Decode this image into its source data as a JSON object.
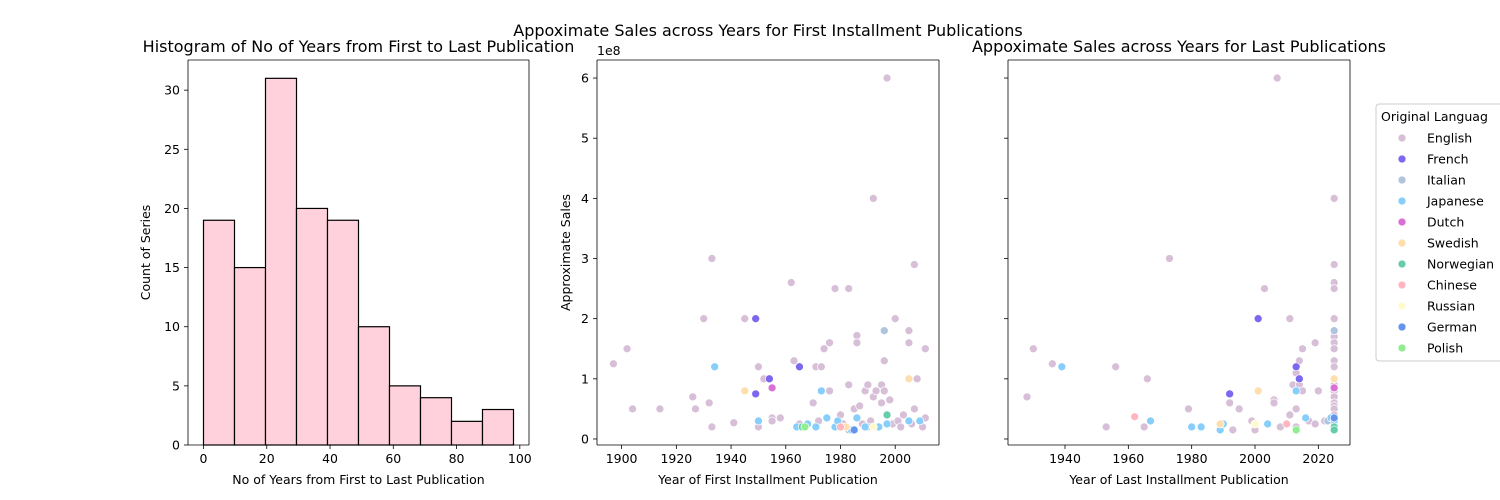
{
  "figure": {
    "suptitle": "Appoximate Sales across Years for First Installment Publications"
  },
  "chart_data": [
    {
      "type": "bar",
      "title": "Histogram of No of Years from First to Last Publication",
      "xlabel": "No of Years from First to Last Publication",
      "ylabel": "Count of Series",
      "bin_edges": [
        0,
        9.8,
        19.6,
        29.4,
        39.2,
        49.0,
        58.8,
        68.6,
        78.4,
        88.2,
        98
      ],
      "values": [
        19,
        15,
        31,
        20,
        19,
        10,
        5,
        4,
        2,
        3
      ],
      "xlim": [
        -4.9,
        102.9
      ],
      "ylim": [
        0,
        32.55
      ],
      "xticks": [
        0,
        20,
        40,
        60,
        80,
        100
      ],
      "yticks": [
        0,
        5,
        10,
        15,
        20,
        25,
        30
      ],
      "bar_color": "#ffd1dc",
      "edge_color": "#000000"
    },
    {
      "type": "scatter",
      "title": "",
      "xlabel": "Year of First Installment Publication",
      "ylabel": "Approximate Sales",
      "y_scale_label": "1e8",
      "xlim": [
        1891,
        2016
      ],
      "ylim": [
        -0.1,
        6.3
      ],
      "xticks": [
        1900,
        1920,
        1940,
        1960,
        1980,
        2000
      ],
      "yticks": [
        0,
        1,
        2,
        3,
        4,
        5,
        6
      ],
      "points": [
        [
          "English",
          1897,
          1.25
        ],
        [
          "English",
          1902,
          1.5
        ],
        [
          "English",
          1904,
          0.5
        ],
        [
          "English",
          1914,
          0.5
        ],
        [
          "English",
          1926,
          0.7
        ],
        [
          "English",
          1927,
          0.5
        ],
        [
          "English",
          1930,
          2.0
        ],
        [
          "English",
          1932,
          0.6
        ],
        [
          "English",
          1933,
          3.0
        ],
        [
          "English",
          1933,
          0.2
        ],
        [
          "English",
          1941,
          0.27
        ],
        [
          "English",
          1945,
          2.0
        ],
        [
          "English",
          1950,
          1.2
        ],
        [
          "English",
          1950,
          0.2
        ],
        [
          "English",
          1952,
          1.0
        ],
        [
          "English",
          1955,
          0.35
        ],
        [
          "English",
          1955,
          0.3
        ],
        [
          "English",
          1958,
          0.35
        ],
        [
          "English",
          1962,
          2.6
        ],
        [
          "English",
          1963,
          1.3
        ],
        [
          "English",
          1965,
          0.25
        ],
        [
          "English",
          1968,
          0.25
        ],
        [
          "English",
          1970,
          0.6
        ],
        [
          "English",
          1971,
          1.2
        ],
        [
          "English",
          1972,
          0.3
        ],
        [
          "English",
          1973,
          1.2
        ],
        [
          "English",
          1974,
          1.5
        ],
        [
          "English",
          1976,
          1.6
        ],
        [
          "English",
          1976,
          0.8
        ],
        [
          "English",
          1978,
          2.5
        ],
        [
          "English",
          1980,
          0.4
        ],
        [
          "English",
          1981,
          0.25
        ],
        [
          "English",
          1982,
          0.2
        ],
        [
          "English",
          1983,
          2.5
        ],
        [
          "English",
          1983,
          0.9
        ],
        [
          "English",
          1985,
          0.5
        ],
        [
          "English",
          1986,
          1.72
        ],
        [
          "English",
          1986,
          1.6
        ],
        [
          "English",
          1987,
          0.55
        ],
        [
          "English",
          1988,
          0.25
        ],
        [
          "English",
          1989,
          0.8
        ],
        [
          "English",
          1990,
          0.9
        ],
        [
          "English",
          1991,
          0.3
        ],
        [
          "English",
          1992,
          4.0
        ],
        [
          "English",
          1992,
          0.7
        ],
        [
          "English",
          1993,
          0.8
        ],
        [
          "English",
          1993,
          0.2
        ],
        [
          "English",
          1995,
          0.9
        ],
        [
          "English",
          1995,
          0.6
        ],
        [
          "English",
          1996,
          1.3
        ],
        [
          "English",
          1996,
          0.8
        ],
        [
          "English",
          1997,
          6.0
        ],
        [
          "English",
          1997,
          0.4
        ],
        [
          "English",
          1998,
          0.65
        ],
        [
          "English",
          1999,
          0.25
        ],
        [
          "English",
          2000,
          2.0
        ],
        [
          "English",
          2001,
          0.3
        ],
        [
          "English",
          2002,
          0.2
        ],
        [
          "English",
          2003,
          0.4
        ],
        [
          "English",
          2005,
          1.8
        ],
        [
          "English",
          2005,
          1.6
        ],
        [
          "English",
          2006,
          0.25
        ],
        [
          "English",
          2007,
          2.9
        ],
        [
          "English",
          2007,
          0.5
        ],
        [
          "English",
          2008,
          1.0
        ],
        [
          "English",
          2009,
          0.3
        ],
        [
          "English",
          2010,
          0.2
        ],
        [
          "English",
          2011,
          1.5
        ],
        [
          "English",
          2011,
          0.35
        ],
        [
          "French",
          1949,
          2.0
        ],
        [
          "French",
          1949,
          0.75
        ],
        [
          "French",
          1954,
          1.0
        ],
        [
          "French",
          1965,
          1.2
        ],
        [
          "Italian",
          1996,
          1.8
        ],
        [
          "Italian",
          1983,
          0.15
        ],
        [
          "Italian",
          1990,
          0.2
        ],
        [
          "Japanese",
          1934,
          1.2
        ],
        [
          "Japanese",
          1950,
          0.3
        ],
        [
          "Japanese",
          1964,
          0.2
        ],
        [
          "Japanese",
          1968,
          0.25
        ],
        [
          "Japanese",
          1971,
          0.2
        ],
        [
          "Japanese",
          1973,
          0.8
        ],
        [
          "Japanese",
          1975,
          0.35
        ],
        [
          "Japanese",
          1978,
          0.2
        ],
        [
          "Japanese",
          1979,
          0.3
        ],
        [
          "Japanese",
          1981,
          0.2
        ],
        [
          "Japanese",
          1984,
          0.15
        ],
        [
          "Japanese",
          1986,
          0.35
        ],
        [
          "Japanese",
          1989,
          0.2
        ],
        [
          "Japanese",
          1994,
          0.2
        ],
        [
          "Japanese",
          1997,
          0.25
        ],
        [
          "Japanese",
          2005,
          0.3
        ],
        [
          "Japanese",
          2009,
          0.3
        ],
        [
          "Dutch",
          1955,
          0.85
        ],
        [
          "Swedish",
          1945,
          0.8
        ],
        [
          "Swedish",
          2005,
          1.0
        ],
        [
          "Swedish",
          1982,
          0.2
        ],
        [
          "Norwegian",
          1966,
          0.2
        ],
        [
          "Norwegian",
          1997,
          0.4
        ],
        [
          "Chinese",
          1980,
          0.2
        ],
        [
          "Russian",
          1992,
          0.2
        ],
        [
          "German",
          1985,
          0.15
        ],
        [
          "Polish",
          1967,
          0.2
        ]
      ]
    },
    {
      "type": "scatter",
      "title": "Appoximate Sales across Years for Last Publications",
      "xlabel": "Year of Last Installment Publication",
      "ylabel": "",
      "xlim": [
        1922,
        2030
      ],
      "ylim": [
        -0.1,
        6.3
      ],
      "xticks": [
        1940,
        1960,
        1980,
        2000,
        2020
      ],
      "yticks": [
        0,
        1,
        2,
        3,
        4,
        5,
        6
      ],
      "points": [
        [
          "English",
          1928,
          0.7
        ],
        [
          "English",
          1930,
          1.5
        ],
        [
          "English",
          1936,
          1.25
        ],
        [
          "English",
          1953,
          0.2
        ],
        [
          "English",
          1956,
          1.2
        ],
        [
          "English",
          1965,
          0.2
        ],
        [
          "English",
          1966,
          1.0
        ],
        [
          "English",
          1973,
          3.0
        ],
        [
          "English",
          1979,
          0.5
        ],
        [
          "English",
          1992,
          0.6
        ],
        [
          "English",
          1993,
          0.15
        ],
        [
          "English",
          1995,
          0.5
        ],
        [
          "English",
          1999,
          0.3
        ],
        [
          "English",
          2000,
          0.15
        ],
        [
          "English",
          2003,
          2.5
        ],
        [
          "English",
          2006,
          0.65
        ],
        [
          "English",
          2006,
          0.6
        ],
        [
          "English",
          2007,
          6.0
        ],
        [
          "English",
          2008,
          0.2
        ],
        [
          "English",
          2011,
          2.0
        ],
        [
          "English",
          2011,
          0.4
        ],
        [
          "English",
          2012,
          0.9
        ],
        [
          "English",
          2013,
          1.1
        ],
        [
          "English",
          2013,
          0.5
        ],
        [
          "English",
          2013,
          0.2
        ],
        [
          "English",
          2014,
          1.3
        ],
        [
          "English",
          2014,
          0.9
        ],
        [
          "English",
          2015,
          1.5
        ],
        [
          "English",
          2015,
          0.8
        ],
        [
          "English",
          2017,
          0.3
        ],
        [
          "English",
          2019,
          1.6
        ],
        [
          "English",
          2019,
          0.25
        ],
        [
          "English",
          2020,
          0.8
        ],
        [
          "English",
          2022,
          0.3
        ],
        [
          "English",
          2025,
          4.0
        ],
        [
          "English",
          2025,
          2.9
        ],
        [
          "English",
          2025,
          2.6
        ],
        [
          "English",
          2025,
          2.5
        ],
        [
          "English",
          2025,
          2.0
        ],
        [
          "English",
          2025,
          1.8
        ],
        [
          "English",
          2025,
          1.7
        ],
        [
          "English",
          2025,
          1.6
        ],
        [
          "English",
          2025,
          1.5
        ],
        [
          "English",
          2025,
          1.3
        ],
        [
          "English",
          2025,
          1.2
        ],
        [
          "English",
          2025,
          1.0
        ],
        [
          "English",
          2025,
          0.9
        ],
        [
          "English",
          2025,
          0.85
        ],
        [
          "English",
          2025,
          0.8
        ],
        [
          "English",
          2025,
          0.7
        ],
        [
          "English",
          2025,
          0.6
        ],
        [
          "English",
          2025,
          0.55
        ],
        [
          "English",
          2025,
          0.5
        ],
        [
          "English",
          2025,
          0.4
        ],
        [
          "English",
          2025,
          0.3
        ],
        [
          "English",
          2025,
          0.25
        ],
        [
          "French",
          2001,
          2.0
        ],
        [
          "French",
          1992,
          0.75
        ],
        [
          "French",
          2013,
          1.2
        ],
        [
          "French",
          2014,
          1.0
        ],
        [
          "Italian",
          2025,
          1.8
        ],
        [
          "Italian",
          2023,
          0.3
        ],
        [
          "Japanese",
          1939,
          1.2
        ],
        [
          "Japanese",
          1967,
          0.3
        ],
        [
          "Japanese",
          1980,
          0.2
        ],
        [
          "Japanese",
          1983,
          0.2
        ],
        [
          "Japanese",
          1989,
          0.15
        ],
        [
          "Japanese",
          1990,
          0.25
        ],
        [
          "Japanese",
          2004,
          0.25
        ],
        [
          "Japanese",
          2013,
          0.8
        ],
        [
          "Japanese",
          2016,
          0.35
        ],
        [
          "Japanese",
          2024,
          0.35
        ],
        [
          "Japanese",
          2025,
          0.3
        ],
        [
          "Japanese",
          2025,
          0.2
        ],
        [
          "Dutch",
          2025,
          0.85
        ],
        [
          "Swedish",
          2001,
          0.8
        ],
        [
          "Swedish",
          2025,
          1.0
        ],
        [
          "Swedish",
          1989,
          0.25
        ],
        [
          "Norwegian",
          2025,
          0.2
        ],
        [
          "Norwegian",
          2025,
          0.15
        ],
        [
          "Chinese",
          1962,
          0.37
        ],
        [
          "Chinese",
          2010,
          0.25
        ],
        [
          "Russian",
          2000,
          0.25
        ],
        [
          "German",
          2025,
          0.35
        ],
        [
          "Polish",
          2013,
          0.15
        ]
      ]
    }
  ],
  "legend": {
    "title": "Original Languag",
    "placement": "right",
    "entries": [
      {
        "name": "English",
        "color": "#d8bfd8"
      },
      {
        "name": "French",
        "color": "#7b68ee"
      },
      {
        "name": "Italian",
        "color": "#b0c4de"
      },
      {
        "name": "Japanese",
        "color": "#87cefa"
      },
      {
        "name": "Dutch",
        "color": "#da70d6"
      },
      {
        "name": "Swedish",
        "color": "#ffdead"
      },
      {
        "name": "Norwegian",
        "color": "#66cdaa"
      },
      {
        "name": "Chinese",
        "color": "#ffb6c1"
      },
      {
        "name": "Russian",
        "color": "#fffacd"
      },
      {
        "name": "German",
        "color": "#6495ed"
      },
      {
        "name": "Polish",
        "color": "#90ee90"
      }
    ]
  }
}
